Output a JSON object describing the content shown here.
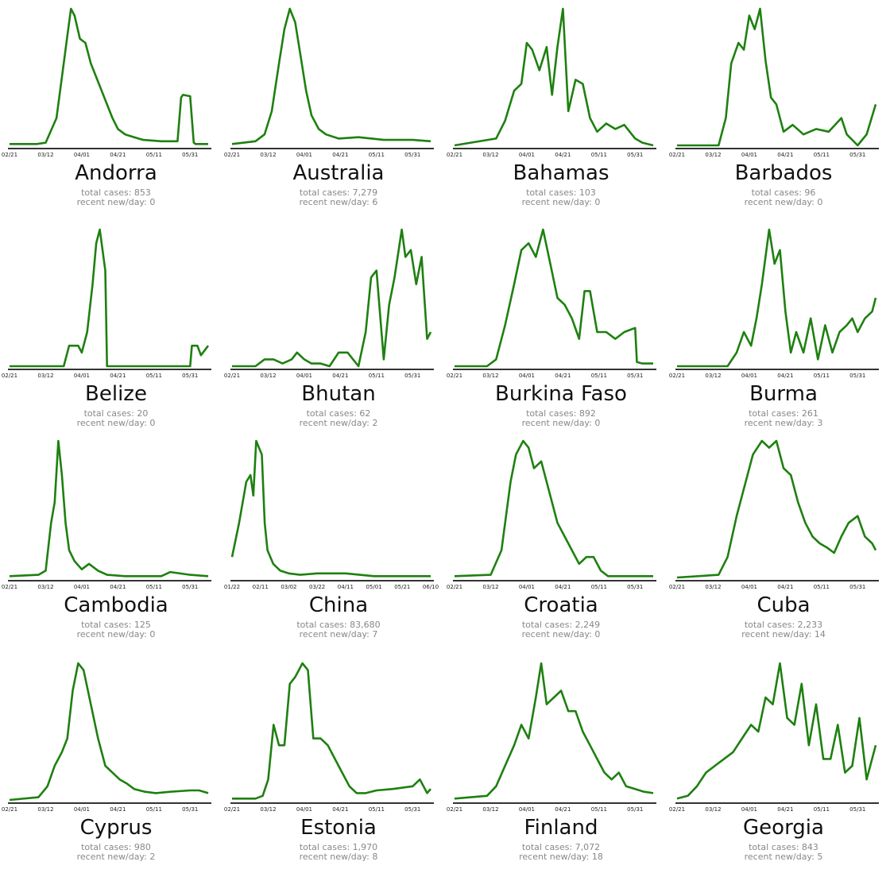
{
  "stat_labels": {
    "total": "total cases: ",
    "recent": "recent new/day: "
  },
  "colors": {
    "line": "#1e8010",
    "axis": "#333333"
  },
  "chart_data": [
    {
      "type": "line",
      "title": "Andorra",
      "total_cases": "853",
      "recent_new_per_day": "0",
      "xticks": [
        "02/21",
        "03/12",
        "04/01",
        "04/21",
        "05/11",
        "05/31"
      ],
      "x": [
        "02/21",
        "03/07",
        "03/12",
        "03/18",
        "03/22",
        "03/24",
        "03/26",
        "03/28",
        "03/31",
        "04/03",
        "04/06",
        "04/09",
        "04/12",
        "04/15",
        "04/18",
        "04/21",
        "04/25",
        "04/30",
        "05/05",
        "05/15",
        "05/24",
        "05/26",
        "05/27",
        "05/31",
        "06/02",
        "06/03",
        "06/10"
      ],
      "y": [
        1,
        1,
        2,
        20,
        60,
        80,
        100,
        95,
        78,
        75,
        60,
        50,
        40,
        30,
        20,
        12,
        8,
        6,
        4,
        3,
        3,
        35,
        37,
        36,
        2,
        1,
        1
      ]
    },
    {
      "type": "line",
      "title": "Australia",
      "total_cases": "7,279",
      "recent_new_per_day": "6",
      "xticks": [
        "02/21",
        "03/12",
        "04/01",
        "04/21",
        "05/11",
        "05/31"
      ],
      "x": [
        "02/21",
        "03/05",
        "03/10",
        "03/14",
        "03/18",
        "03/21",
        "03/24",
        "03/27",
        "03/30",
        "04/02",
        "04/05",
        "04/09",
        "04/13",
        "04/20",
        "05/01",
        "05/15",
        "05/31",
        "06/10"
      ],
      "y": [
        1,
        3,
        8,
        25,
        60,
        85,
        100,
        90,
        65,
        40,
        22,
        12,
        8,
        5,
        6,
        4,
        4,
        3
      ]
    },
    {
      "type": "line",
      "title": "Bahamas",
      "total_cases": "103",
      "recent_new_per_day": "0",
      "xticks": [
        "02/21",
        "03/12",
        "04/01",
        "04/21",
        "05/11",
        "05/31"
      ],
      "x": [
        "02/21",
        "03/15",
        "03/20",
        "03/25",
        "03/29",
        "04/01",
        "04/04",
        "04/08",
        "04/12",
        "04/15",
        "04/18",
        "04/21",
        "04/24",
        "04/28",
        "05/02",
        "05/06",
        "05/10",
        "05/15",
        "05/20",
        "05/25",
        "05/31",
        "06/04",
        "06/10"
      ],
      "y": [
        0,
        5,
        18,
        40,
        45,
        75,
        70,
        55,
        72,
        37,
        72,
        100,
        25,
        48,
        45,
        20,
        10,
        16,
        12,
        15,
        5,
        2,
        0
      ]
    },
    {
      "type": "line",
      "title": "Barbados",
      "total_cases": "96",
      "recent_new_per_day": "0",
      "xticks": [
        "02/21",
        "03/12",
        "04/01",
        "04/21",
        "05/11",
        "05/31"
      ],
      "x": [
        "02/21",
        "03/15",
        "03/19",
        "03/22",
        "03/26",
        "03/29",
        "04/01",
        "04/04",
        "04/07",
        "04/10",
        "04/13",
        "04/16",
        "04/20",
        "04/25",
        "05/01",
        "05/08",
        "05/15",
        "05/22",
        "05/25",
        "05/31",
        "06/05",
        "06/10"
      ],
      "y": [
        0,
        0,
        20,
        60,
        75,
        70,
        95,
        85,
        100,
        62,
        35,
        30,
        10,
        15,
        8,
        12,
        10,
        20,
        8,
        0,
        8,
        30
      ]
    },
    {
      "type": "line",
      "title": "Belize",
      "total_cases": "20",
      "recent_new_per_day": "0",
      "xticks": [
        "02/21",
        "03/12",
        "04/01",
        "04/21",
        "05/11",
        "05/31"
      ],
      "x": [
        "02/21",
        "03/22",
        "03/25",
        "03/30",
        "04/01",
        "04/04",
        "04/07",
        "04/09",
        "04/11",
        "04/14",
        "04/15",
        "05/31",
        "06/01",
        "06/04",
        "06/06",
        "06/10"
      ],
      "y": [
        0,
        0,
        15,
        15,
        10,
        25,
        60,
        90,
        100,
        70,
        0,
        0,
        15,
        15,
        8,
        15
      ]
    },
    {
      "type": "line",
      "title": "Bhutan",
      "total_cases": "62",
      "recent_new_per_day": "2",
      "xticks": [
        "02/21",
        "03/12",
        "04/01",
        "04/21",
        "05/11",
        "05/31"
      ],
      "x": [
        "02/21",
        "03/05",
        "03/10",
        "03/15",
        "03/20",
        "03/25",
        "03/28",
        "04/01",
        "04/05",
        "04/10",
        "04/15",
        "04/20",
        "04/25",
        "05/01",
        "05/05",
        "05/08",
        "05/11",
        "05/15",
        "05/18",
        "05/21",
        "05/25",
        "05/27",
        "05/30",
        "06/02",
        "06/05",
        "06/08",
        "06/10"
      ],
      "y": [
        0,
        0,
        5,
        5,
        2,
        5,
        10,
        5,
        2,
        2,
        0,
        10,
        10,
        0,
        25,
        65,
        70,
        5,
        45,
        65,
        100,
        80,
        85,
        60,
        80,
        20,
        25
      ]
    },
    {
      "type": "line",
      "title": "Burkina Faso",
      "total_cases": "892",
      "recent_new_per_day": "0",
      "xticks": [
        "02/21",
        "03/12",
        "04/01",
        "04/21",
        "05/11",
        "05/31"
      ],
      "x": [
        "02/21",
        "03/10",
        "03/15",
        "03/20",
        "03/25",
        "03/29",
        "04/02",
        "04/06",
        "04/10",
        "04/14",
        "04/18",
        "04/22",
        "04/26",
        "04/30",
        "05/03",
        "05/06",
        "05/10",
        "05/15",
        "05/20",
        "05/25",
        "05/31",
        "06/01",
        "06/04",
        "06/10"
      ],
      "y": [
        0,
        0,
        5,
        30,
        60,
        85,
        90,
        80,
        100,
        75,
        50,
        45,
        35,
        20,
        55,
        55,
        25,
        25,
        20,
        25,
        28,
        3,
        2,
        2
      ]
    },
    {
      "type": "line",
      "title": "Burma",
      "total_cases": "261",
      "recent_new_per_day": "3",
      "xticks": [
        "02/21",
        "03/12",
        "04/01",
        "04/21",
        "05/11",
        "05/31"
      ],
      "x": [
        "02/21",
        "03/20",
        "03/25",
        "03/29",
        "04/02",
        "04/05",
        "04/08",
        "04/12",
        "04/15",
        "04/18",
        "04/21",
        "04/24",
        "04/27",
        "05/01",
        "05/05",
        "05/09",
        "05/13",
        "05/17",
        "05/21",
        "05/25",
        "05/28",
        "05/31",
        "06/04",
        "06/08",
        "06/10"
      ],
      "y": [
        0,
        0,
        10,
        25,
        15,
        35,
        60,
        100,
        75,
        85,
        40,
        10,
        25,
        10,
        35,
        5,
        30,
        10,
        25,
        30,
        35,
        25,
        35,
        40,
        50
      ]
    },
    {
      "type": "line",
      "title": "Cambodia",
      "total_cases": "125",
      "recent_new_per_day": "0",
      "xticks": [
        "02/21",
        "03/12",
        "04/01",
        "04/21",
        "05/11",
        "05/31"
      ],
      "x": [
        "02/21",
        "03/08",
        "03/12",
        "03/15",
        "03/17",
        "03/19",
        "03/21",
        "03/23",
        "03/25",
        "03/28",
        "04/01",
        "04/05",
        "04/10",
        "04/15",
        "04/25",
        "05/15",
        "05/20",
        "05/31",
        "06/10"
      ],
      "y": [
        1,
        2,
        5,
        40,
        55,
        100,
        75,
        40,
        20,
        12,
        6,
        10,
        5,
        2,
        1,
        1,
        4,
        2,
        1
      ]
    },
    {
      "type": "line",
      "title": "China",
      "total_cases": "83,680",
      "recent_new_per_day": "7",
      "xticks": [
        "01/22",
        "02/11",
        "03/02",
        "03/22",
        "04/11",
        "05/01",
        "05/21",
        "06/10"
      ],
      "x": [
        "01/22",
        "01/27",
        "02/01",
        "02/04",
        "02/06",
        "02/08",
        "02/10",
        "02/12",
        "02/14",
        "02/16",
        "02/20",
        "02/25",
        "03/02",
        "03/10",
        "03/22",
        "04/11",
        "05/01",
        "06/10"
      ],
      "y": [
        15,
        40,
        70,
        75,
        60,
        100,
        95,
        90,
        40,
        20,
        10,
        5,
        3,
        2,
        3,
        3,
        1,
        1
      ]
    },
    {
      "type": "line",
      "title": "Croatia",
      "total_cases": "2,249",
      "recent_new_per_day": "0",
      "xticks": [
        "02/21",
        "03/12",
        "04/01",
        "04/21",
        "05/11",
        "05/31"
      ],
      "x": [
        "02/21",
        "03/12",
        "03/18",
        "03/23",
        "03/26",
        "03/30",
        "04/02",
        "04/05",
        "04/09",
        "04/12",
        "04/15",
        "04/18",
        "04/22",
        "04/26",
        "04/30",
        "05/04",
        "05/08",
        "05/12",
        "05/16",
        "05/31",
        "06/10"
      ],
      "y": [
        1,
        2,
        20,
        70,
        90,
        100,
        95,
        80,
        85,
        70,
        55,
        40,
        30,
        20,
        10,
        15,
        15,
        5,
        1,
        1,
        1
      ]
    },
    {
      "type": "line",
      "title": "Cuba",
      "total_cases": "2,233",
      "recent_new_per_day": "14",
      "xticks": [
        "02/21",
        "03/12",
        "04/01",
        "04/21",
        "05/11",
        "05/31"
      ],
      "x": [
        "02/21",
        "03/15",
        "03/20",
        "03/25",
        "03/30",
        "04/03",
        "04/08",
        "04/12",
        "04/16",
        "04/20",
        "04/24",
        "04/28",
        "05/02",
        "05/06",
        "05/10",
        "05/14",
        "05/18",
        "05/22",
        "05/26",
        "05/31",
        "06/04",
        "06/08",
        "06/10"
      ],
      "y": [
        0,
        2,
        15,
        45,
        70,
        90,
        100,
        95,
        100,
        80,
        75,
        55,
        40,
        30,
        25,
        22,
        18,
        30,
        40,
        45,
        30,
        25,
        20
      ]
    },
    {
      "type": "line",
      "title": "Cyprus",
      "total_cases": "980",
      "recent_new_per_day": "2",
      "xticks": [
        "02/21",
        "03/12",
        "04/01",
        "04/21",
        "05/11",
        "05/31"
      ],
      "x": [
        "02/21",
        "03/08",
        "03/13",
        "03/17",
        "03/21",
        "03/24",
        "03/27",
        "03/30",
        "04/02",
        "04/06",
        "04/10",
        "04/14",
        "04/18",
        "04/22",
        "04/26",
        "04/30",
        "05/06",
        "05/12",
        "05/20",
        "05/31",
        "06/05",
        "06/10"
      ],
      "y": [
        0,
        2,
        10,
        25,
        35,
        45,
        80,
        100,
        95,
        70,
        45,
        25,
        20,
        15,
        12,
        8,
        6,
        5,
        6,
        7,
        7,
        5
      ]
    },
    {
      "type": "line",
      "title": "Estonia",
      "total_cases": "1,970",
      "recent_new_per_day": "8",
      "xticks": [
        "02/21",
        "03/12",
        "04/01",
        "04/21",
        "05/11",
        "05/31"
      ],
      "x": [
        "02/21",
        "03/05",
        "03/09",
        "03/12",
        "03/15",
        "03/18",
        "03/21",
        "03/24",
        "03/27",
        "03/31",
        "04/03",
        "04/06",
        "04/10",
        "04/14",
        "04/18",
        "04/22",
        "04/26",
        "04/30",
        "05/05",
        "05/11",
        "05/20",
        "05/31",
        "06/04",
        "06/08",
        "06/10"
      ],
      "y": [
        1,
        1,
        3,
        15,
        55,
        40,
        40,
        85,
        90,
        100,
        95,
        45,
        45,
        40,
        30,
        20,
        10,
        5,
        5,
        7,
        8,
        10,
        15,
        5,
        8
      ]
    },
    {
      "type": "line",
      "title": "Finland",
      "total_cases": "7,072",
      "recent_new_per_day": "18",
      "xticks": [
        "02/21",
        "03/12",
        "04/01",
        "04/21",
        "05/11",
        "05/31"
      ],
      "x": [
        "02/21",
        "03/10",
        "03/15",
        "03/20",
        "03/25",
        "03/29",
        "04/02",
        "04/06",
        "04/09",
        "04/12",
        "04/16",
        "04/20",
        "04/24",
        "04/28",
        "05/02",
        "05/06",
        "05/10",
        "05/14",
        "05/18",
        "05/22",
        "05/26",
        "05/31",
        "06/05",
        "06/10"
      ],
      "y": [
        1,
        3,
        10,
        25,
        40,
        55,
        45,
        75,
        100,
        70,
        75,
        80,
        65,
        65,
        50,
        40,
        30,
        20,
        15,
        20,
        10,
        8,
        6,
        5
      ]
    },
    {
      "type": "line",
      "title": "Georgia",
      "total_cases": "843",
      "recent_new_per_day": "5",
      "xticks": [
        "02/21",
        "03/12",
        "04/01",
        "04/21",
        "05/11",
        "05/31"
      ],
      "x": [
        "02/21",
        "02/27",
        "03/03",
        "03/08",
        "03/13",
        "03/18",
        "03/23",
        "03/28",
        "04/02",
        "04/06",
        "04/10",
        "04/14",
        "04/18",
        "04/22",
        "04/26",
        "04/30",
        "05/04",
        "05/08",
        "05/12",
        "05/16",
        "05/20",
        "05/24",
        "05/28",
        "06/01",
        "06/05",
        "06/10"
      ],
      "y": [
        1,
        3,
        10,
        20,
        25,
        30,
        35,
        45,
        55,
        50,
        75,
        70,
        100,
        60,
        55,
        85,
        40,
        70,
        30,
        30,
        55,
        20,
        25,
        60,
        15,
        40
      ]
    }
  ]
}
